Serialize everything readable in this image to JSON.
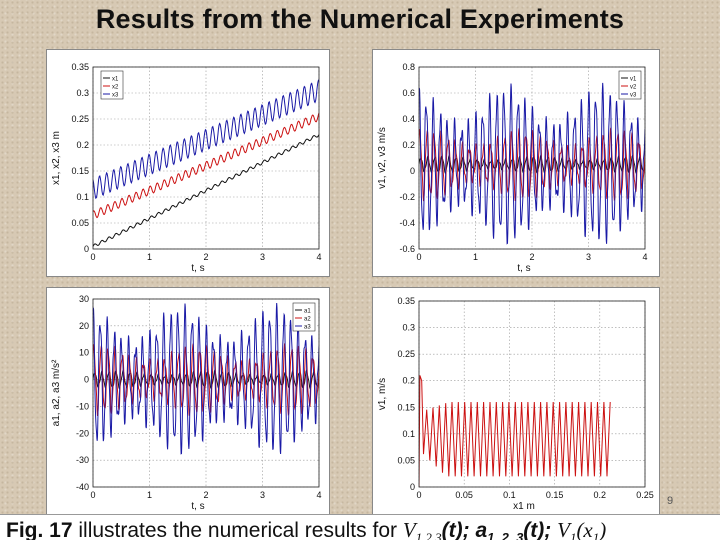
{
  "slide": {
    "title": "Results from the Numerical Experiments",
    "page_number": "9"
  },
  "caption": {
    "fig_label": "Fig. 17",
    "text": " illustrates the numerical results for ",
    "expr_v": "V",
    "expr_v_sub": "1,2,3",
    "expr_t1": "(t); ",
    "expr_a": "a",
    "expr_a_sub": "1, 2, 3",
    "expr_t2": "(t); ",
    "expr_v1": "V",
    "expr_v1_sub": "1",
    "expr_x": "(x",
    "expr_x_sub": "1",
    "expr_close": ")"
  },
  "colors": {
    "series1": "#111111",
    "series2": "#cc1111",
    "series3": "#1a1aa6"
  },
  "chart_data": [
    {
      "type": "line",
      "ylabel": "x1, x2, x3  m",
      "xlabel": "t,  s",
      "xlim": [
        0,
        4
      ],
      "ylim": [
        0,
        0.35
      ],
      "xticks": [
        "0",
        "1",
        "2",
        "3",
        "4"
      ],
      "yticks": [
        "0",
        "0.05",
        "0.1",
        "0.15",
        "0.2",
        "0.25",
        "0.3",
        "0.35"
      ],
      "ytick_values": [
        0,
        0.05,
        0.1,
        0.15,
        0.2,
        0.25,
        0.3,
        0.35
      ],
      "grid": true,
      "legend": "top-left",
      "legend_labels": [
        "x1",
        "x2",
        "x3"
      ],
      "series": [
        {
          "name": "x1",
          "kind": "trend",
          "start": 0.005,
          "end": 0.22,
          "amp": 0.003,
          "freq": 8
        },
        {
          "name": "x2",
          "kind": "trend",
          "start": 0.065,
          "end": 0.255,
          "amp": 0.008,
          "freq": 8
        },
        {
          "name": "x3",
          "kind": "trend",
          "start": 0.115,
          "end": 0.305,
          "amp": 0.02,
          "freq": 8
        }
      ]
    },
    {
      "type": "line",
      "ylabel": "v1, v2, v3  m/s",
      "xlabel": "t,  s",
      "xlim": [
        0,
        4
      ],
      "ylim": [
        -0.6,
        0.8
      ],
      "xticks": [
        "0",
        "1",
        "2",
        "3",
        "4"
      ],
      "yticks": [
        "-0.6",
        "-0.4",
        "-0.2",
        "0",
        "0.2",
        "0.4",
        "0.6",
        "0.8"
      ],
      "ytick_values": [
        -0.6,
        -0.4,
        -0.2,
        0,
        0.2,
        0.4,
        0.6,
        0.8
      ],
      "grid": true,
      "legend": "top-right",
      "legend_labels": [
        "v1",
        "v2",
        "v3"
      ],
      "series": [
        {
          "name": "v1",
          "kind": "osc",
          "center": 0.05,
          "amp": 0.06,
          "freq": 8
        },
        {
          "name": "v2",
          "kind": "osc",
          "center": 0.05,
          "amp": 0.25,
          "freq": 8
        },
        {
          "name": "v3",
          "kind": "osc",
          "center": 0.05,
          "amp": 0.55,
          "freq": 8
        }
      ]
    },
    {
      "type": "line",
      "ylabel": "a1, a2, a3  m/s²",
      "xlabel": "t,  s",
      "xlim": [
        0,
        4
      ],
      "ylim": [
        -40,
        30
      ],
      "xticks": [
        "0",
        "1",
        "2",
        "3",
        "4"
      ],
      "yticks": [
        "-40",
        "-30",
        "-20",
        "-10",
        "0",
        "10",
        "20",
        "30"
      ],
      "ytick_values": [
        -40,
        -30,
        -20,
        -10,
        0,
        10,
        20,
        30
      ],
      "grid": true,
      "legend": "top-right",
      "legend_labels": [
        "a1",
        "a2",
        "a3"
      ],
      "series": [
        {
          "name": "a1",
          "kind": "osc",
          "center": 0,
          "amp": 3,
          "freq": 8
        },
        {
          "name": "a2",
          "kind": "osc",
          "center": 0,
          "amp": 12,
          "freq": 8
        },
        {
          "name": "a3",
          "kind": "osc",
          "center": 0,
          "amp": 25,
          "freq": 8
        }
      ]
    },
    {
      "type": "line",
      "ylabel": "v1,  m/s",
      "xlabel": "x1   m",
      "xlim": [
        0,
        0.25
      ],
      "ylim": [
        0,
        0.35
      ],
      "xticks": [
        "0",
        "0.05",
        "0.1",
        "0.15",
        "0.2",
        "0.25"
      ],
      "xtick_values": [
        0,
        0.05,
        0.1,
        0.15,
        0.2,
        0.25
      ],
      "yticks": [
        "0",
        "0.05",
        "0.1",
        "0.15",
        "0.2",
        "0.25",
        "0.3",
        "0.35"
      ],
      "ytick_values": [
        0,
        0.05,
        0.1,
        0.15,
        0.2,
        0.25,
        0.3,
        0.35
      ],
      "grid": true,
      "series": [
        {
          "name": "v1(x1)",
          "kind": "phase",
          "x_start": 0.005,
          "x_end": 0.215,
          "top": 0.16,
          "bottom": 0.02,
          "cycles": 30
        }
      ]
    }
  ]
}
